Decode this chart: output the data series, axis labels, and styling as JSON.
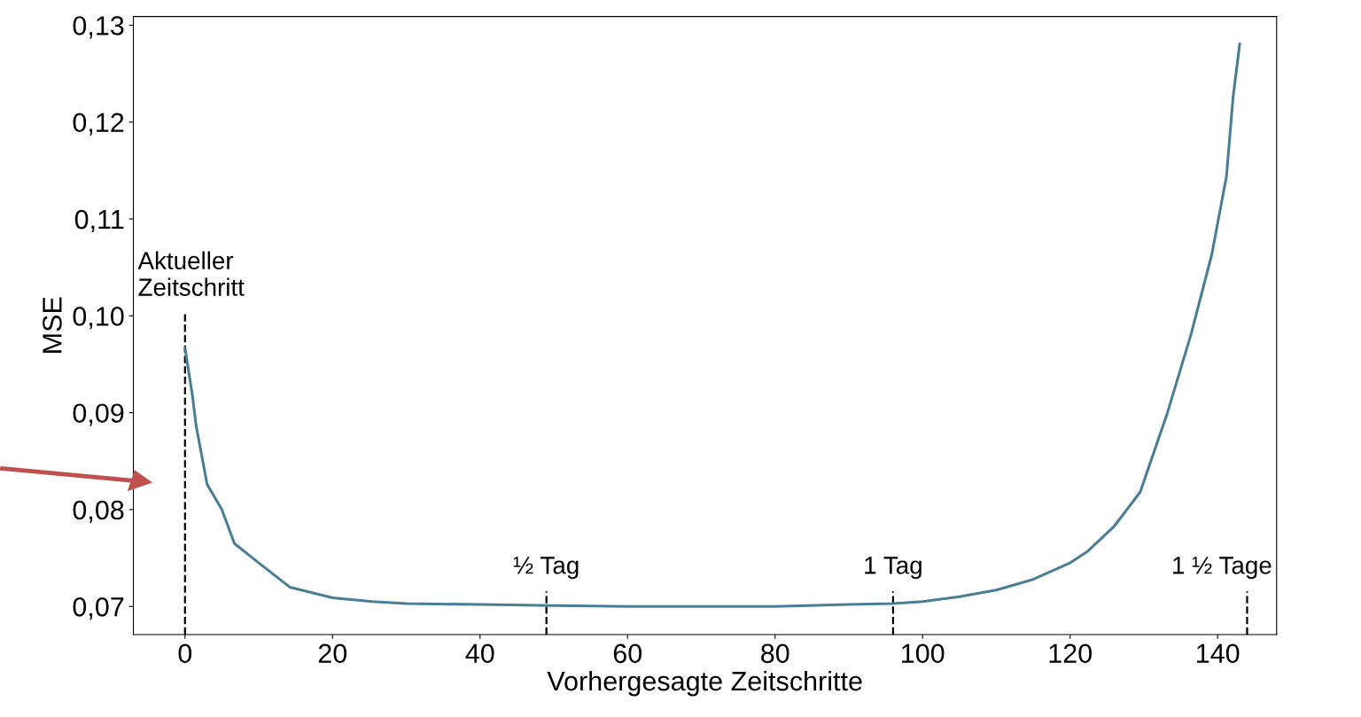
{
  "chart_data": {
    "type": "line",
    "xlabel": "Vorhergesagte Zeitschritte",
    "ylabel": "MSE",
    "x": [
      0,
      1.0,
      1.5,
      3.0,
      5,
      6.7,
      10,
      14.2,
      20,
      25.4,
      30,
      40,
      50,
      60,
      70,
      80,
      90,
      96,
      100,
      105,
      110,
      115,
      120,
      122.4,
      126,
      129.5,
      133.2,
      136.4,
      139.2,
      141.2,
      142.1,
      143
    ],
    "series": [
      {
        "color": "#4a7d96",
        "values": [
          0.0967,
          0.0918,
          0.0887,
          0.0826,
          0.08,
          0.0765,
          0.0745,
          0.072,
          0.0709,
          0.0705,
          0.0703,
          0.0702,
          0.0701,
          0.07,
          0.07,
          0.07,
          0.0702,
          0.0703,
          0.0705,
          0.071,
          0.0717,
          0.0728,
          0.0745,
          0.0757,
          0.0783,
          0.0818,
          0.09,
          0.0981,
          0.1063,
          0.1144,
          0.1226,
          0.1281
        ]
      }
    ],
    "xlim": [
      -7,
      148
    ],
    "xticks": [
      0,
      20,
      40,
      60,
      80,
      100,
      120,
      140
    ],
    "ylim": [
      0.0671,
      0.1309
    ],
    "yticks": [
      {
        "value": 0.07,
        "label": "0,07"
      },
      {
        "value": 0.08,
        "label": "0,08"
      },
      {
        "value": 0.09,
        "label": "0,09"
      },
      {
        "value": 0.1,
        "label": "0,10"
      },
      {
        "value": 0.11,
        "label": "0,11"
      },
      {
        "value": 0.12,
        "label": "0,12"
      },
      {
        "value": 0.13,
        "label": "0,13"
      }
    ],
    "ref_lines": [
      {
        "axis": "x",
        "value": 0,
        "label": "Aktueller\nZeitschritt",
        "line_style": "dashed",
        "color": "#000000"
      },
      {
        "axis": "x",
        "value": 49,
        "label": "½ Tag",
        "line_style": "dashed",
        "color": "#000000"
      },
      {
        "axis": "x",
        "value": 96,
        "label": "1 Tag",
        "line_style": "dashed",
        "color": "#000000"
      },
      {
        "axis": "x",
        "value": 144,
        "label": "1 ½ Tage",
        "line_style": "dashed",
        "color": "#000000"
      }
    ],
    "grid": false,
    "marker": "none",
    "line_style": "solid"
  }
}
